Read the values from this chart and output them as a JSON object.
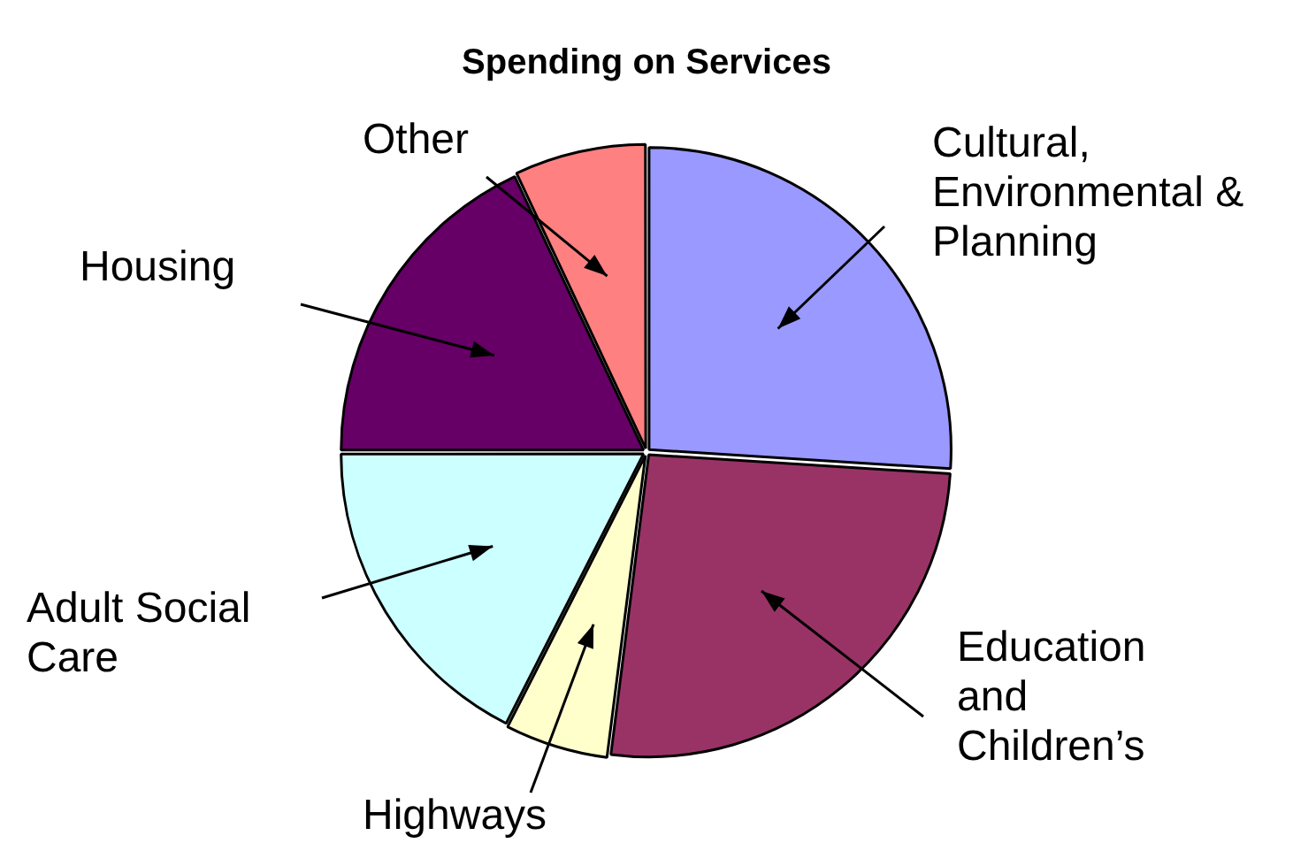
{
  "chart_data": {
    "type": "pie",
    "title": "Spending on Services",
    "categories": [
      "Cultural, Environmental & Planning",
      "Education and Children’s",
      "Highways",
      "Adult Social Care",
      "Housing",
      "Other"
    ],
    "values": [
      26,
      26,
      5.5,
      17.5,
      18,
      7
    ],
    "colors": [
      "#9999ff",
      "#993366",
      "#ffffcc",
      "#ccffff",
      "#660066",
      "#ff8080"
    ],
    "legend": false
  }
}
